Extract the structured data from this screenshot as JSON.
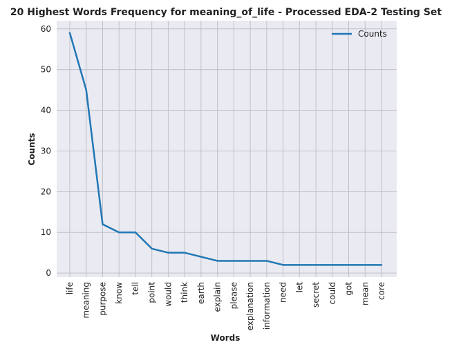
{
  "chart_data": {
    "type": "line",
    "title": "20 Highest Words Frequency for meaning_of_life - Processed EDA-2 Testing Set",
    "xlabel": "Words",
    "ylabel": "Counts",
    "categories": [
      "life",
      "meaning",
      "purpose",
      "know",
      "tell",
      "point",
      "would",
      "think",
      "earth",
      "explain",
      "please",
      "explanation",
      "information",
      "need",
      "let",
      "secret",
      "could",
      "got",
      "mean",
      "core"
    ],
    "series": [
      {
        "name": "Counts",
        "values": [
          59,
          45,
          12,
          10,
          10,
          6,
          5,
          5,
          4,
          3,
          3,
          3,
          3,
          2,
          2,
          2,
          2,
          2,
          2,
          2
        ]
      }
    ],
    "ylim": [
      -1,
      62
    ],
    "yticks": [
      0,
      10,
      20,
      30,
      40,
      50,
      60
    ],
    "grid": true,
    "legend": "top-right",
    "colors": {
      "line": "#1f77b4",
      "plot_bg": "#eaeaf2",
      "grid": "#c0c0c8"
    }
  }
}
